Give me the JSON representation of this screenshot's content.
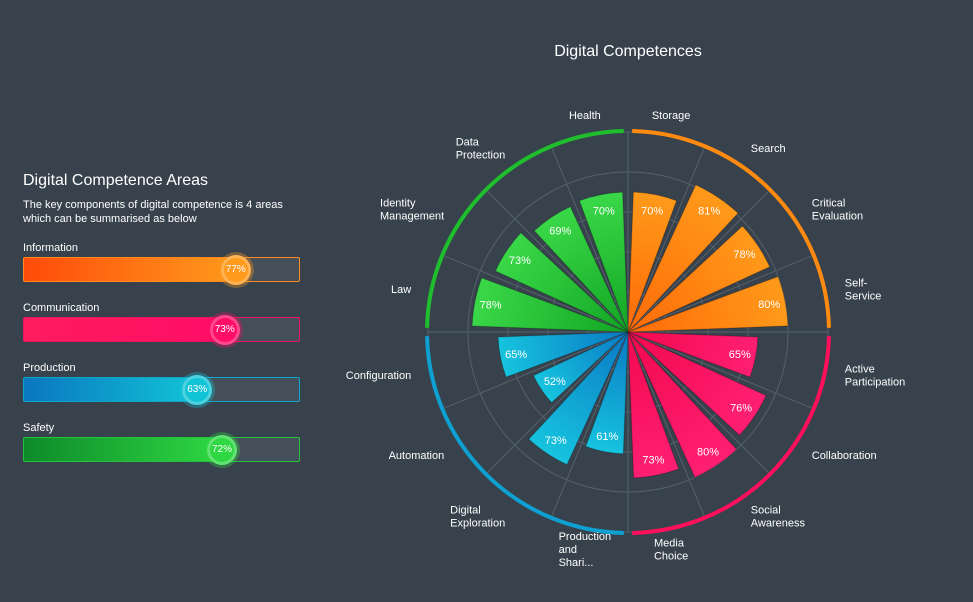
{
  "panel": {
    "title": "Digital Competence Areas",
    "description": "The key components of digital competence is 4 areas which can be summarised as below"
  },
  "areas": [
    {
      "label": "Information",
      "value_text": "77%",
      "value": 77,
      "color_start": "#ff4b0a",
      "color_end": "#ff9a1c",
      "track_border": "#ff8a1f"
    },
    {
      "label": "Communication",
      "value_text": "73%",
      "value": 73,
      "color_start": "#ff1c5e",
      "color_end": "#ff0d66",
      "track_border": "#e8165e"
    },
    {
      "label": "Production",
      "value_text": "63%",
      "value": 63,
      "color_start": "#0a76c0",
      "color_end": "#12c3d6",
      "track_border": "#0fa6c8"
    },
    {
      "label": "Safety",
      "value_text": "72%",
      "value": 72,
      "color_start": "#0e8a2a",
      "color_end": "#2ed843",
      "track_border": "#27c23c"
    }
  ],
  "chart_data": {
    "type": "polar-bar",
    "title": "Digital Competences",
    "rlim": [
      0,
      100
    ],
    "grid": true,
    "categories": [
      "Storage",
      "Search",
      "Critical\nEvaluation",
      "Self-\nService",
      "Active\nParticipation",
      "Collaboration",
      "Social\nAwareness",
      "Media\nChoice",
      "Production\nand\nShari...",
      "Digital\nExploration",
      "Automation",
      "Configuration",
      "Law",
      "Identity\nManagement",
      "Data\nProtection",
      "Health"
    ],
    "values": [
      70,
      81,
      78,
      80,
      65,
      76,
      80,
      73,
      61,
      73,
      52,
      65,
      78,
      73,
      69,
      70
    ],
    "value_labels": [
      "70%",
      "81%",
      "78%",
      "80%",
      "65%",
      "76%",
      "80%",
      "73%",
      "61%",
      "73%",
      "52%",
      "65%",
      "78%",
      "73%",
      "69%",
      "70%"
    ],
    "groups": [
      {
        "name": "Information",
        "indices": [
          0,
          1,
          2,
          3
        ],
        "color": "#ff8a10"
      },
      {
        "name": "Communication",
        "indices": [
          4,
          5,
          6,
          7
        ],
        "color": "#ff0f5c"
      },
      {
        "name": "Production",
        "indices": [
          8,
          9,
          10,
          11
        ],
        "color": "#0fa0d2"
      },
      {
        "name": "Safety",
        "indices": [
          12,
          13,
          14,
          15
        ],
        "color": "#1fbe2c"
      }
    ]
  }
}
